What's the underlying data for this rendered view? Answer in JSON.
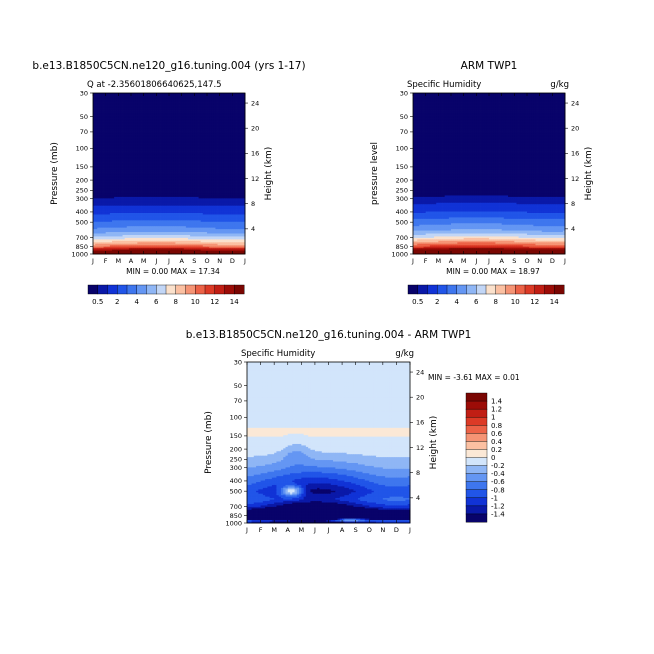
{
  "chart_data": [
    {
      "type": "heatmap",
      "title": "b.e13.B1850C5CN.ne120_g16.tuning.004 (yrs 1-17)",
      "subtitle_left": "Q at -2.35601806640625,147.5",
      "subtitle_right": "",
      "ylabel_left": "Pressure (mb)",
      "ylabel_right": "Height (km)",
      "x_ticks": [
        "J",
        "F",
        "M",
        "A",
        "M",
        "J",
        "J",
        "A",
        "S",
        "O",
        "N",
        "D",
        "J"
      ],
      "pressure_ticks": [
        "30",
        "50",
        "70",
        "100",
        "150",
        "200",
        "250",
        "300",
        "400",
        "500",
        "700",
        "850",
        "1000"
      ],
      "pressure_values": [
        30,
        50,
        70,
        100,
        150,
        200,
        250,
        300,
        400,
        500,
        700,
        850,
        1000
      ],
      "height_ticks": [
        "4",
        "8",
        "12",
        "16",
        "20",
        "24"
      ],
      "height_values": [
        4,
        8,
        12,
        16,
        20,
        24
      ],
      "minmax_text": "MIN =   0.00 MAX =  17.34",
      "colorbar_labels": [
        "0.5",
        "2",
        "4",
        "6",
        "8",
        "10",
        "12",
        "14"
      ],
      "levels": [
        0.5,
        1,
        2,
        3,
        4,
        5,
        6,
        7,
        8,
        9,
        10,
        11,
        12,
        13,
        14
      ],
      "colors": [
        "#08036a",
        "#0a19a8",
        "#1133d6",
        "#2155e8",
        "#3e76ee",
        "#6496f3",
        "#8fb6f5",
        "#c2d6f6",
        "#fbe1cc",
        "#fbc0a2",
        "#f59475",
        "#ec6247",
        "#dc3a26",
        "#c11e14",
        "#9c0c07",
        "#7a0602"
      ],
      "dims": [
        8,
        12
      ],
      "profile_pressure": [
        1000,
        950,
        900,
        850,
        800,
        700,
        600,
        500,
        450,
        400,
        350,
        300,
        250,
        200
      ],
      "profile_q": [
        17.3,
        15.5,
        13.0,
        10.5,
        9.0,
        6.5,
        4.5,
        3.2,
        2.5,
        1.8,
        1.0,
        0.55,
        0.2,
        0.05
      ],
      "seasonal_amp": 0.05
    },
    {
      "type": "heatmap",
      "title": "ARM TWP1",
      "subtitle_left": "Specific Humidity",
      "subtitle_right": "g/kg",
      "ylabel_left": "pressure level",
      "ylabel_right": "Height (km)",
      "x_ticks": [
        "J",
        "F",
        "M",
        "A",
        "M",
        "J",
        "J",
        "A",
        "S",
        "O",
        "N",
        "D",
        "J"
      ],
      "pressure_ticks": [
        "30",
        "50",
        "70",
        "100",
        "150",
        "200",
        "250",
        "300",
        "400",
        "500",
        "700",
        "850",
        "1000"
      ],
      "pressure_values": [
        30,
        50,
        70,
        100,
        150,
        200,
        250,
        300,
        400,
        500,
        700,
        850,
        1000
      ],
      "height_ticks": [
        "4",
        "8",
        "12",
        "16",
        "20",
        "24"
      ],
      "height_values": [
        4,
        8,
        12,
        16,
        20,
        24
      ],
      "minmax_text": "MIN =   0.00 MAX =  18.97",
      "colorbar_labels": [
        "0.5",
        "2",
        "4",
        "6",
        "8",
        "10",
        "12",
        "14"
      ],
      "levels": [
        0.5,
        1,
        2,
        3,
        4,
        5,
        6,
        7,
        8,
        9,
        10,
        11,
        12,
        13,
        14
      ],
      "colors": [
        "#08036a",
        "#0a19a8",
        "#1133d6",
        "#2155e8",
        "#3e76ee",
        "#6496f3",
        "#8fb6f5",
        "#c2d6f6",
        "#fbe1cc",
        "#fbc0a2",
        "#f59475",
        "#ec6247",
        "#dc3a26",
        "#c11e14",
        "#9c0c07",
        "#7a0602"
      ],
      "dims": [
        8,
        12
      ],
      "profile_pressure": [
        1000,
        950,
        900,
        850,
        800,
        700,
        600,
        500,
        450,
        400,
        350,
        300,
        250,
        200
      ],
      "profile_q": [
        18.9,
        16.5,
        14.0,
        11.5,
        10.0,
        7.2,
        5.0,
        3.6,
        2.8,
        2.0,
        1.2,
        0.6,
        0.25,
        0.05
      ],
      "seasonal_amp": 0.05
    },
    {
      "type": "heatmap",
      "title": "b.e13.B1850C5CN.ne120_g16.tuning.004 - ARM TWP1",
      "subtitle_left": "Specific Humidity",
      "subtitle_right": "g/kg",
      "ylabel_left": "Pressure (mb)",
      "ylabel_right": "Height (km)",
      "x_ticks": [
        "J",
        "F",
        "M",
        "A",
        "M",
        "J",
        "J",
        "A",
        "S",
        "O",
        "N",
        "D",
        "J"
      ],
      "pressure_ticks": [
        "30",
        "50",
        "70",
        "100",
        "150",
        "200",
        "250",
        "300",
        "400",
        "500",
        "700",
        "850",
        "1000"
      ],
      "pressure_values": [
        30,
        50,
        70,
        100,
        150,
        200,
        250,
        300,
        400,
        500,
        700,
        850,
        1000
      ],
      "height_ticks": [
        "4",
        "8",
        "12",
        "16",
        "20",
        "24"
      ],
      "height_values": [
        4,
        8,
        12,
        16,
        20,
        24
      ],
      "minmax_text": "MIN =  -3.61 MAX =   0.01",
      "colorbar_labels": [
        "1.4",
        "1.2",
        "1",
        "0.8",
        "0.6",
        "0.4",
        "0.2",
        "0",
        "-0.2",
        "-0.4",
        "-0.6",
        "-0.8",
        "-1",
        "-1.2",
        "-1.4"
      ],
      "levels": [
        -1.4,
        -1.2,
        -1.0,
        -0.8,
        -0.6,
        -0.4,
        -0.2,
        0,
        0.2,
        0.4,
        0.6,
        0.8,
        1.0,
        1.2,
        1.4
      ],
      "colors": [
        "#08036a",
        "#0a19a8",
        "#1133d6",
        "#2155e8",
        "#3e76ee",
        "#6496f3",
        "#8fb6f5",
        "#d2e5fb",
        "#fbe8d6",
        "#fbc0a2",
        "#f59475",
        "#ec6247",
        "#dc3a26",
        "#c11e14",
        "#9c0c07",
        "#7a0602"
      ],
      "dims": [
        8,
        12
      ],
      "profile_pressure": [
        1000,
        950,
        900,
        850,
        800,
        700,
        600,
        500,
        400,
        300,
        250,
        200,
        150,
        130,
        100,
        70,
        50,
        30
      ],
      "profile_q": [
        -1.6,
        -1.2,
        -2.6,
        -3.0,
        -2.2,
        -1.4,
        -1.0,
        -1.2,
        -0.9,
        -0.5,
        -0.3,
        -0.1,
        0.01,
        0.01,
        -0.05,
        -0.05,
        -0.05,
        -0.05
      ],
      "seasonal_amp": 0.25
    }
  ]
}
